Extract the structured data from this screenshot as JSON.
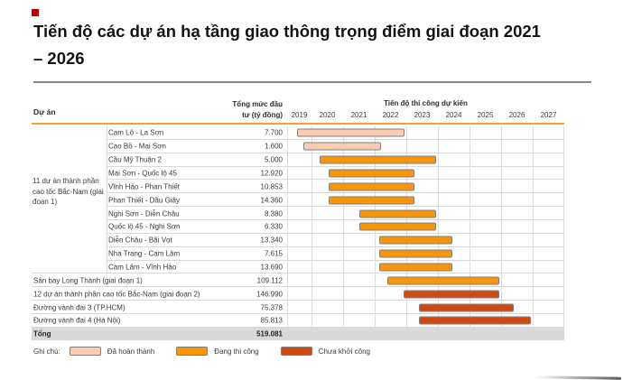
{
  "title": "Tiến độ các dự án hạ tầng giao thông trọng điểm giai đoạn 2021 – 2026",
  "colors": {
    "accent": "#C00000",
    "header_rule": "#F2A23B",
    "completed": "#F9CDB3",
    "in_progress": "#F9950A",
    "not_started": "#CF4A13",
    "total_band": "#D9D9D9"
  },
  "table": {
    "col_project": "Dự án",
    "col_investment": "Tổng mức đầu tư (tỷ đồng)",
    "timeline_title": "Tiến độ thi công dự kiến",
    "group_label": "11 dự án thành phần cao tốc Bắc-Nam (giai đoạn 1)",
    "total_label": "Tổng",
    "total_value": "519.081"
  },
  "legend": {
    "label": "Ghi chú:",
    "items": [
      {
        "label": "Đã hoàn thành",
        "status": "completed",
        "color": "#F9CDB3"
      },
      {
        "label": "Đang thi công",
        "status": "in_progress",
        "color": "#F9950A"
      },
      {
        "label": "Chưa khởi công",
        "status": "not_started",
        "color": "#CF4A13"
      }
    ]
  },
  "chart_data": {
    "type": "gantt",
    "title": "Tiến độ thi công dự kiến",
    "x_axis_years": [
      2019,
      2020,
      2021,
      2022,
      2023,
      2024,
      2025,
      2026,
      2027
    ],
    "value_unit": "tỷ đồng",
    "rows": [
      {
        "name": "Cam Lộ - La Sơn",
        "investment": "7.700",
        "start": 2019.55,
        "end": 2022.95,
        "status": "completed",
        "group": true
      },
      {
        "name": "Cao Bồ - Mai Sơn",
        "investment": "1.600",
        "start": 2019.75,
        "end": 2022.2,
        "status": "completed",
        "group": true
      },
      {
        "name": "Cầu Mỹ Thuận 2",
        "investment": "5.000",
        "start": 2020.25,
        "end": 2023.95,
        "status": "in_progress",
        "group": true
      },
      {
        "name": "Mai Sơn - Quốc lộ 45",
        "investment": "12.920",
        "start": 2020.55,
        "end": 2023.25,
        "status": "in_progress",
        "group": true
      },
      {
        "name": "Vĩnh Hảo - Phan Thiết",
        "investment": "10.853",
        "start": 2020.55,
        "end": 2023.25,
        "status": "in_progress",
        "group": true
      },
      {
        "name": "Phan Thiết - Dầu Giây",
        "investment": "14.360",
        "start": 2020.55,
        "end": 2023.25,
        "status": "in_progress",
        "group": true
      },
      {
        "name": "Nghi Sơn - Diễn Châu",
        "investment": "8.380",
        "start": 2021.5,
        "end": 2023.95,
        "status": "in_progress",
        "group": true
      },
      {
        "name": "Quốc lộ 45 - Nghi Sơn",
        "investment": "6.330",
        "start": 2021.5,
        "end": 2023.95,
        "status": "in_progress",
        "group": true
      },
      {
        "name": "Diễn Châu - Bãi Vọt",
        "investment": "13.340",
        "start": 2022.15,
        "end": 2024.45,
        "status": "in_progress",
        "group": true
      },
      {
        "name": "Nha Trang - Cam Lâm",
        "investment": "7.615",
        "start": 2022.15,
        "end": 2024.45,
        "status": "in_progress",
        "group": true
      },
      {
        "name": "Cam Lâm - Vĩnh Hảo",
        "investment": "13.690",
        "start": 2022.15,
        "end": 2024.45,
        "status": "in_progress",
        "group": true
      },
      {
        "name": "Sân bay Long Thành (giai đoạn 1)",
        "investment": "109.112",
        "start": 2022.4,
        "end": 2025.95,
        "status": "in_progress",
        "group": false
      },
      {
        "name": "12 dự án thành phần cao tốc Bắc-Nam (giai đoạn 2)",
        "investment": "146.990",
        "start": 2022.9,
        "end": 2025.95,
        "status": "not_started",
        "group": false
      },
      {
        "name": "Đường vành đai 3 (TP.HCM)",
        "investment": "75.378",
        "start": 2023.4,
        "end": 2026.4,
        "status": "not_started",
        "group": false
      },
      {
        "name": "Đường vành đai 4 (Hà Nội)",
        "investment": "85.813",
        "start": 2023.4,
        "end": 2026.95,
        "status": "not_started",
        "group": false
      }
    ]
  }
}
